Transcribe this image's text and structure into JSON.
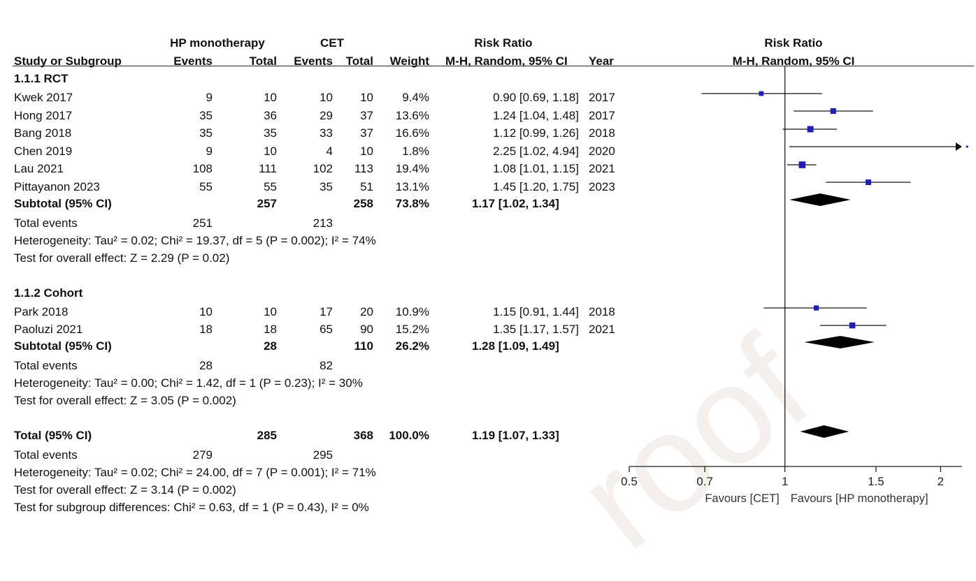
{
  "header": {
    "group1_label": "HP monotherapy",
    "group2_label": "CET",
    "rr_label": "Risk Ratio",
    "rr_method": "M-H, Random, 95% CI",
    "plot_rr_label": "Risk Ratio",
    "plot_rr_method": "M-H, Random, 95% CI",
    "study_col": "Study or Subgroup",
    "events1": "Events",
    "total1": "Total",
    "events2": "Events",
    "total2": "Total",
    "weight": "Weight",
    "year": "Year"
  },
  "watermark": "roof",
  "subgroups": [
    {
      "title": "1.1.1 RCT",
      "studies": [
        {
          "name": "Kwek 2017",
          "e1": "9",
          "t1": "10",
          "e2": "10",
          "t2": "10",
          "weight": "9.4%",
          "ci": "0.90 [0.69, 1.18]",
          "year": "2017"
        },
        {
          "name": "Hong 2017",
          "e1": "35",
          "t1": "36",
          "e2": "29",
          "t2": "37",
          "weight": "13.6%",
          "ci": "1.24 [1.04, 1.48]",
          "year": "2017"
        },
        {
          "name": "Bang 2018",
          "e1": "35",
          "t1": "35",
          "e2": "33",
          "t2": "37",
          "weight": "16.6%",
          "ci": "1.12 [0.99, 1.26]",
          "year": "2018"
        },
        {
          "name": "Chen 2019",
          "e1": "9",
          "t1": "10",
          "e2": "4",
          "t2": "10",
          "weight": "1.8%",
          "ci": "2.25 [1.02, 4.94]",
          "year": "2020"
        },
        {
          "name": "Lau 2021",
          "e1": "108",
          "t1": "111",
          "e2": "102",
          "t2": "113",
          "weight": "19.4%",
          "ci": "1.08 [1.01, 1.15]",
          "year": "2021"
        },
        {
          "name": "Pittayanon 2023",
          "e1": "55",
          "t1": "55",
          "e2": "35",
          "t2": "51",
          "weight": "13.1%",
          "ci": "1.45 [1.20, 1.75]",
          "year": "2023"
        }
      ],
      "subtotal": {
        "label": "Subtotal (95% CI)",
        "t1": "257",
        "t2": "258",
        "weight": "73.8%",
        "ci": "1.17 [1.02, 1.34]"
      },
      "total_events": {
        "label": "Total events",
        "e1": "251",
        "e2": "213"
      },
      "heterogeneity": "Heterogeneity: Tau² = 0.02; Chi² = 19.37, df = 5 (P = 0.002); I² = 74%",
      "overall": "Test for overall effect: Z = 2.29 (P = 0.02)"
    },
    {
      "title": "1.1.2 Cohort",
      "studies": [
        {
          "name": "Park 2018",
          "e1": "10",
          "t1": "10",
          "e2": "17",
          "t2": "20",
          "weight": "10.9%",
          "ci": "1.15 [0.91, 1.44]",
          "year": "2018"
        },
        {
          "name": "Paoluzi 2021",
          "e1": "18",
          "t1": "18",
          "e2": "65",
          "t2": "90",
          "weight": "15.2%",
          "ci": "1.35 [1.17, 1.57]",
          "year": "2021"
        }
      ],
      "subtotal": {
        "label": "Subtotal (95% CI)",
        "t1": "28",
        "t2": "110",
        "weight": "26.2%",
        "ci": "1.28 [1.09, 1.49]"
      },
      "total_events": {
        "label": "Total events",
        "e1": "28",
        "e2": "82"
      },
      "heterogeneity": "Heterogeneity: Tau² = 0.00; Chi² = 1.42, df = 1 (P = 0.23); I² = 30%",
      "overall": "Test for overall effect: Z = 3.05 (P = 0.002)"
    }
  ],
  "total": {
    "label": "Total (95% CI)",
    "t1": "285",
    "t2": "368",
    "weight": "100.0%",
    "ci": "1.19 [1.07, 1.33]",
    "total_events": {
      "label": "Total events",
      "e1": "279",
      "e2": "295"
    },
    "heterogeneity": "Heterogeneity: Tau² = 0.02; Chi² = 24.00, df = 7 (P = 0.001); I² = 71%",
    "overall": "Test for overall effect: Z = 3.14 (P = 0.002)",
    "subgroup_diff": "Test for subgroup differences: Chi² = 0.63, df = 1 (P = 0.43), I² = 0%"
  },
  "chart_data": {
    "type": "forest",
    "x_scale": "log",
    "xlim": [
      0.5,
      2.2
    ],
    "xticks": [
      0.5,
      0.7,
      1,
      1.5,
      2
    ],
    "xtick_labels": [
      "0.5",
      "0.7",
      "1",
      "1.5",
      "2"
    ],
    "favours_left": "Favours [CET]",
    "favours_right": "Favours [HP monotherapy]",
    "marker_color": "#1f1fb4",
    "studies": [
      {
        "name": "Kwek 2017",
        "rr": 0.9,
        "lo": 0.69,
        "hi": 1.18,
        "weight": 9.4
      },
      {
        "name": "Hong 2017",
        "rr": 1.24,
        "lo": 1.04,
        "hi": 1.48,
        "weight": 13.6
      },
      {
        "name": "Bang 2018",
        "rr": 1.12,
        "lo": 0.99,
        "hi": 1.26,
        "weight": 16.6
      },
      {
        "name": "Chen 2019",
        "rr": 2.25,
        "lo": 1.02,
        "hi": 4.94,
        "weight": 1.8
      },
      {
        "name": "Lau 2021",
        "rr": 1.08,
        "lo": 1.01,
        "hi": 1.15,
        "weight": 19.4
      },
      {
        "name": "Pittayanon 2023",
        "rr": 1.45,
        "lo": 1.2,
        "hi": 1.75,
        "weight": 13.1
      },
      {
        "name": "Park 2018",
        "rr": 1.15,
        "lo": 0.91,
        "hi": 1.44,
        "weight": 10.9
      },
      {
        "name": "Paoluzi 2021",
        "rr": 1.35,
        "lo": 1.17,
        "hi": 1.57,
        "weight": 15.2
      }
    ],
    "diamonds": [
      {
        "name": "Subtotal 1.1.1 RCT",
        "rr": 1.17,
        "lo": 1.02,
        "hi": 1.34
      },
      {
        "name": "Subtotal 1.1.2 Cohort",
        "rr": 1.28,
        "lo": 1.09,
        "hi": 1.49
      },
      {
        "name": "Total",
        "rr": 1.19,
        "lo": 1.07,
        "hi": 1.33
      }
    ]
  }
}
